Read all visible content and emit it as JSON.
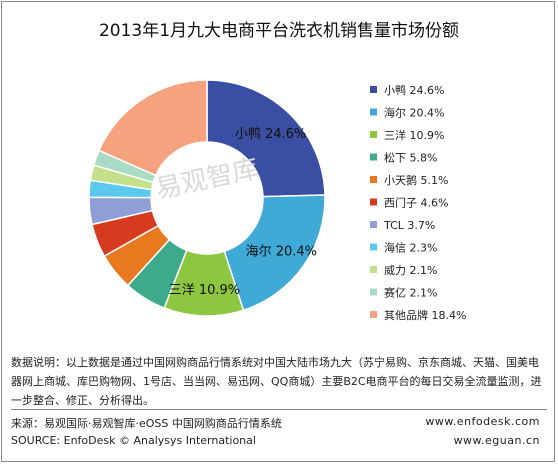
{
  "title": "2013年1月九大电商平台洗衣机销售量市场份额",
  "chart_data": {
    "type": "pie",
    "variant": "donut",
    "unit": "%",
    "legend_position": "right",
    "slices": [
      {
        "name": "小鸭",
        "value": 24.6,
        "label": "24.6%",
        "color": "#3A4FA3"
      },
      {
        "name": "海尔",
        "value": 20.4,
        "label": "20.4%",
        "color": "#3FA9D8"
      },
      {
        "name": "三洋",
        "value": 10.9,
        "label": "10.9%",
        "color": "#8DC63F"
      },
      {
        "name": "松下",
        "value": 5.8,
        "label": "5.8%",
        "color": "#3DAA8C"
      },
      {
        "name": "小天鹅",
        "value": 5.1,
        "label": "5.1%",
        "color": "#E8791E"
      },
      {
        "name": "西门子",
        "value": 4.6,
        "label": "4.6%",
        "color": "#D63A1F"
      },
      {
        "name": "TCL",
        "value": 3.7,
        "label": "3.7%",
        "color": "#8F9ED6"
      },
      {
        "name": "海信",
        "value": 2.3,
        "label": "2.3%",
        "color": "#5BC8EE"
      },
      {
        "name": "威力",
        "value": 2.1,
        "label": "2.1%",
        "color": "#C4E08A"
      },
      {
        "name": "赛亿",
        "value": 2.1,
        "label": "2.1%",
        "color": "#A9DCC5"
      },
      {
        "name": "其他品牌",
        "value": 18.4,
        "label": "18.4%",
        "color": "#F7A27E"
      }
    ],
    "inner_labels": [
      {
        "slice": 0,
        "text": "小鸭  24.6%"
      },
      {
        "slice": 1,
        "text": "海尔  20.4%"
      },
      {
        "slice": 2,
        "text": "三洋  10.9%"
      }
    ]
  },
  "watermark": "易观智库",
  "note": "数据说明：以上数据是通过中国网购商品行情系统对中国大陆市场九大（苏宁易购、京东商城、天猫、国美电器网上商城、库巴购物网、1号店、当当网、易迅网、QQ商城）主要B2C电商平台的每日交易全流量监测，进一步整合、修正、分析得出。",
  "source_cn": "来源：易观国际·易观智库·eOSS 中国网购商品行情系统",
  "source_en": "SOURCE: EnfoDesk © Analysys International",
  "website1": "www.enfodesk.com",
  "website2": "www.eguan.cn"
}
